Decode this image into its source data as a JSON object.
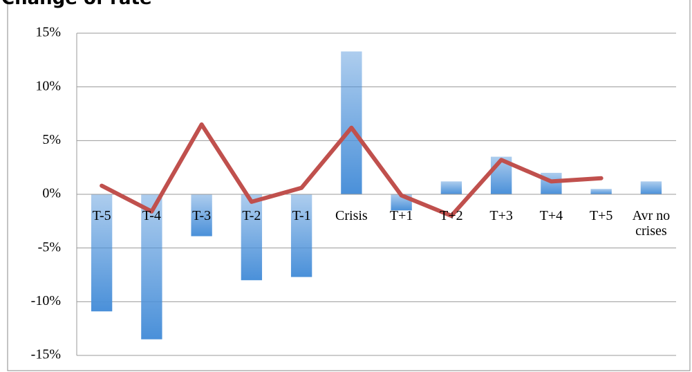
{
  "chart_data": {
    "type": "bar",
    "title": "Change of rate",
    "categories": [
      "T-5",
      "T-4",
      "T-3",
      "T-2",
      "T-1",
      "Crisis",
      "T+1",
      "T+2",
      "T+3",
      "T+4",
      "T+5",
      "Avr no crises"
    ],
    "series": [
      {
        "type": "bar",
        "color": "#4a90d9",
        "values": [
          -10.9,
          -13.5,
          -3.9,
          -8.0,
          -7.7,
          13.3,
          -1.5,
          1.2,
          3.5,
          2.0,
          0.5,
          1.2
        ]
      },
      {
        "type": "line",
        "color": "#c0504d",
        "values": [
          0.8,
          -1.6,
          6.5,
          -0.7,
          0.6,
          6.2,
          -0.1,
          -2.0,
          3.2,
          1.2,
          1.5,
          null
        ]
      }
    ],
    "ylim": [
      -15,
      15
    ],
    "yticks": [
      {
        "value": -15,
        "label": "-15%"
      },
      {
        "value": -10,
        "label": "-10%"
      },
      {
        "value": -5,
        "label": "-5%"
      },
      {
        "value": 0,
        "label": "0%"
      },
      {
        "value": 5,
        "label": "5%"
      },
      {
        "value": 10,
        "label": "10%"
      },
      {
        "value": 15,
        "label": "15%"
      }
    ],
    "grid": true
  }
}
